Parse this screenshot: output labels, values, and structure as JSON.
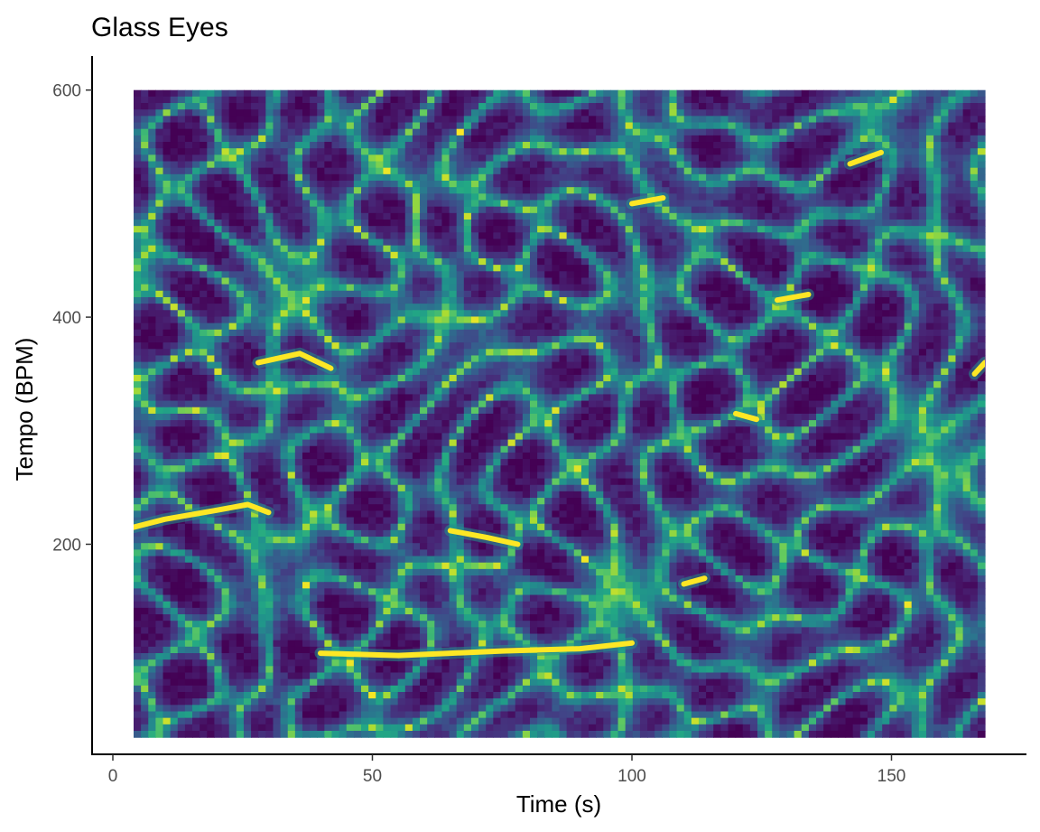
{
  "chart_data": {
    "type": "heatmap",
    "title": "Glass Eyes",
    "xlabel": "Time (s)",
    "ylabel": "Tempo (BPM)",
    "xlim": [
      -4,
      176
    ],
    "ylim": [
      15,
      630
    ],
    "x_ticks": [
      0,
      50,
      100,
      150
    ],
    "y_ticks": [
      200,
      400,
      600
    ],
    "data_extent": {
      "x": [
        4,
        168
      ],
      "y": [
        30,
        600
      ]
    },
    "grid": false,
    "legend": "none",
    "colormap": "viridis",
    "colors": {
      "low": "#440154",
      "mid": "#21918c",
      "high": "#fde725"
    },
    "ridges": [
      {
        "t": [
          40,
          55,
          65,
          75,
          90,
          100
        ],
        "bpm": [
          104,
          102,
          104,
          106,
          108,
          113
        ]
      },
      {
        "t": [
          4,
          10,
          20,
          26,
          30
        ],
        "bpm": [
          215,
          222,
          230,
          235,
          228
        ]
      },
      {
        "t": [
          65,
          72,
          78
        ],
        "bpm": [
          212,
          206,
          200
        ]
      },
      {
        "t": [
          28,
          36,
          42
        ],
        "bpm": [
          360,
          368,
          355
        ]
      },
      {
        "t": [
          100,
          106
        ],
        "bpm": [
          500,
          505
        ]
      },
      {
        "t": [
          128,
          134
        ],
        "bpm": [
          415,
          420
        ]
      },
      {
        "t": [
          120,
          124
        ],
        "bpm": [
          315,
          310
        ]
      },
      {
        "t": [
          142,
          148
        ],
        "bpm": [
          535,
          545
        ]
      },
      {
        "t": [
          166,
          168
        ],
        "bpm": [
          350,
          360
        ]
      },
      {
        "t": [
          110,
          114
        ],
        "bpm": [
          165,
          170
        ]
      }
    ]
  }
}
